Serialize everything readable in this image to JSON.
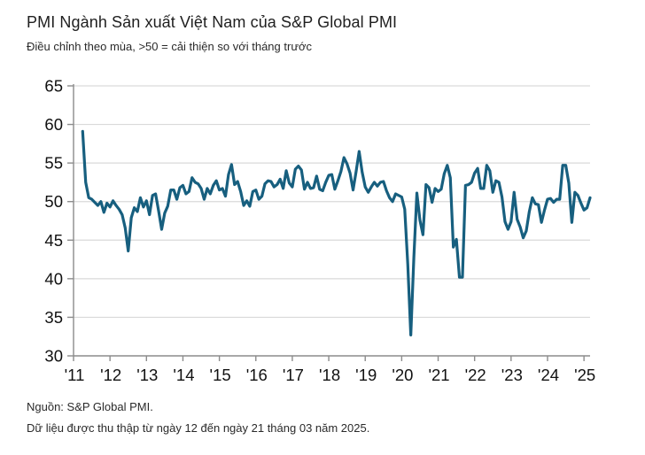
{
  "header": {
    "title": "PMI Ngành Sản xuất Việt Nam của S&P Global PMI",
    "subtitle": "Điều chỉnh theo mùa, >50 = cải thiện so với tháng trước"
  },
  "footer": {
    "source": "Nguồn: S&P Global PMI.",
    "note": "Dữ liệu được thu thập từ ngày 12 đến ngày 21 tháng 03 năm 2025."
  },
  "chart_data": {
    "type": "line",
    "title": "PMI Ngành Sản xuất Việt Nam của S&P Global PMI",
    "subtitle": "Điều chỉnh theo mùa, >50 = cải thiện so với tháng trước",
    "ylim": [
      30,
      65
    ],
    "y_ticks": [
      30,
      35,
      40,
      45,
      50,
      55,
      60,
      65
    ],
    "x_tick_years": [
      2011,
      2012,
      2013,
      2014,
      2015,
      2016,
      2017,
      2018,
      2019,
      2020,
      2021,
      2022,
      2023,
      2024,
      2025
    ],
    "x_tick_labels": [
      "'11",
      "'12",
      "'13",
      "'14",
      "'15",
      "'16",
      "'17",
      "'18",
      "'19",
      "'20",
      "'21",
      "'22",
      "'23",
      "'24",
      "'25"
    ],
    "grid": "horizontal",
    "legend": "none",
    "colors": {
      "line": "#175f7f",
      "grid": "#d9d9d9",
      "axis": "#8c8c8c",
      "tick_text": "#111111"
    },
    "series": [
      {
        "name": "PMI Ngành Sản xuất Việt Nam",
        "frequency": "monthly",
        "start": "2011-04",
        "end": "2025-03",
        "values": [
          59.1,
          52.5,
          50.5,
          50.3,
          49.9,
          49.5,
          50.0,
          48.6,
          49.8,
          49.3,
          50.1,
          49.5,
          49.0,
          48.3,
          46.6,
          43.6,
          47.9,
          49.2,
          48.7,
          50.5,
          49.3,
          50.1,
          48.3,
          50.8,
          51.0,
          48.8,
          46.4,
          48.5,
          49.4,
          51.5,
          51.5,
          50.3,
          51.8,
          52.1,
          51.0,
          51.3,
          53.1,
          52.5,
          52.3,
          51.7,
          50.3,
          51.7,
          51.0,
          52.1,
          52.7,
          51.5,
          51.7,
          50.7,
          53.5,
          54.8,
          52.2,
          52.6,
          51.3,
          49.5,
          50.1,
          49.4,
          51.3,
          51.5,
          50.3,
          50.7,
          52.3,
          52.7,
          52.6,
          51.9,
          52.2,
          52.9,
          51.7,
          54.0,
          52.4,
          51.9,
          54.2,
          54.6,
          54.1,
          51.6,
          52.5,
          51.7,
          51.8,
          53.3,
          51.6,
          51.4,
          52.5,
          53.4,
          53.5,
          51.6,
          52.7,
          53.9,
          55.7,
          54.9,
          53.7,
          51.5,
          53.9,
          56.5,
          53.8,
          51.9,
          51.2,
          51.9,
          52.5,
          52.0,
          52.5,
          52.6,
          51.4,
          50.5,
          50.0,
          51.0,
          50.8,
          50.6,
          49.0,
          41.9,
          32.7,
          42.7,
          51.1,
          47.6,
          45.7,
          52.2,
          51.8,
          49.9,
          51.7,
          51.3,
          51.6,
          53.6,
          54.7,
          53.1,
          44.1,
          45.1,
          40.2,
          40.2,
          52.1,
          52.2,
          52.5,
          53.7,
          54.3,
          51.7,
          51.7,
          54.7,
          54.0,
          51.2,
          52.7,
          52.5,
          50.6,
          47.4,
          46.4,
          47.4,
          51.2,
          47.7,
          46.7,
          45.3,
          46.2,
          48.7,
          50.5,
          49.7,
          49.6,
          47.3,
          48.9,
          50.3,
          50.4,
          49.9,
          50.3,
          50.3,
          54.7,
          54.7,
          52.4,
          47.3,
          51.2,
          50.8,
          49.8,
          48.9,
          49.2,
          50.5
        ]
      }
    ]
  }
}
